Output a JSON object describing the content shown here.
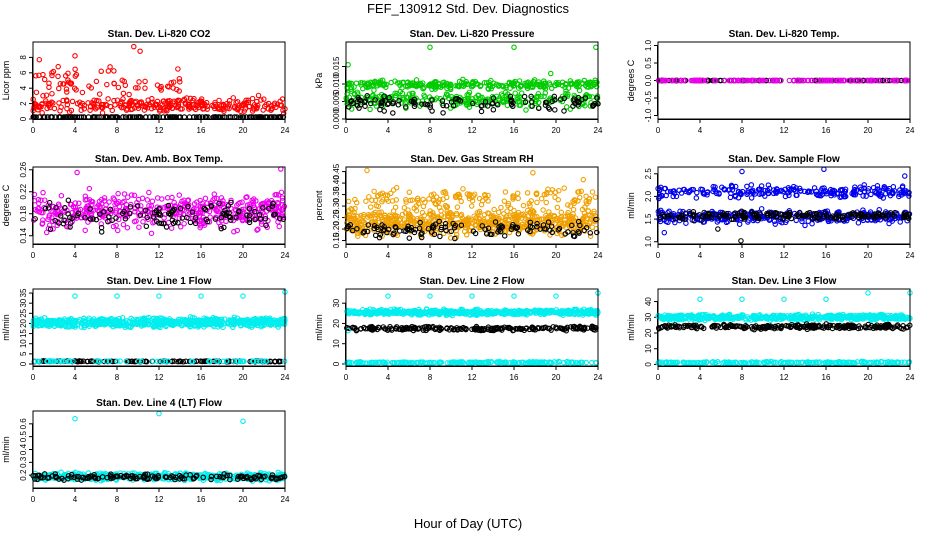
{
  "figure": {
    "title": "FEF_130912  Std. Dev. Diagnostics",
    "xlabel": "Hour of Day (UTC)"
  },
  "chart_data": [
    {
      "type": "scatter",
      "title": "Stan. Dev. Li-820 CO2",
      "ylabel": "Licor ppm",
      "xlim": [
        0,
        24
      ],
      "ylim": [
        0,
        10
      ],
      "xticks": [
        "0",
        "4",
        "8",
        "12",
        "16",
        "20",
        "24"
      ],
      "yticks": [
        "0",
        "2",
        "4",
        "6",
        "8"
      ],
      "series": [
        {
          "color": "#ff0000",
          "seed": 11,
          "n": 340,
          "bands": [
            {
              "w": 1.0,
              "center": 1.8,
              "spread": 1.4,
              "xmax": 24
            },
            {
              "w": 0.18,
              "center": 4.5,
              "spread": 2.5,
              "xmax": 14
            }
          ],
          "outliers": [
            [
              0.6,
              7.7
            ],
            [
              1.8,
              6.0
            ],
            [
              4.0,
              8.2
            ],
            [
              6.5,
              6.2
            ],
            [
              9.6,
              9.4
            ],
            [
              10.2,
              8.8
            ],
            [
              13.8,
              6.5
            ],
            [
              2.4,
              6.8
            ]
          ]
        },
        {
          "color": "#000000",
          "seed": 12,
          "n": 170,
          "bands": [
            {
              "w": 1.0,
              "center": 0.15,
              "spread": 0.12,
              "xmax": 24
            }
          ],
          "outliers": []
        }
      ]
    },
    {
      "type": "scatter",
      "title": "Stan. Dev. Li-820 Pressure",
      "ylabel": "kPa",
      "xlim": [
        0,
        24
      ],
      "ylim": [
        0,
        0.022
      ],
      "xticks": [
        "0",
        "4",
        "8",
        "12",
        "16",
        "20",
        "24"
      ],
      "yticks": [
        "0.000",
        "0.005",
        "0.010",
        "0.015"
      ],
      "ytick_values": [
        0,
        0.005,
        0.01,
        0.015
      ],
      "series": [
        {
          "color": "#00cc00",
          "seed": 21,
          "n": 520,
          "bands": [
            {
              "w": 0.5,
              "center": 0.0055,
              "spread": 0.0035,
              "xmax": 24
            },
            {
              "w": 0.5,
              "center": 0.0098,
              "spread": 0.0018,
              "xmax": 24
            }
          ],
          "outliers": [
            [
              8.0,
              0.0205
            ],
            [
              16.0,
              0.0205
            ],
            [
              23.8,
              0.0205
            ],
            [
              0.2,
              0.0155
            ],
            [
              19.5,
              0.013
            ]
          ]
        },
        {
          "color": "#000000",
          "seed": 22,
          "n": 110,
          "bands": [
            {
              "w": 1.0,
              "center": 0.0045,
              "spread": 0.0035,
              "xmax": 24
            }
          ],
          "outliers": []
        }
      ]
    },
    {
      "type": "scatter",
      "title": "Stan. Dev. Li-820 Temp.",
      "ylabel": "degrees C",
      "xlim": [
        0,
        24
      ],
      "ylim": [
        -1.1,
        1.1
      ],
      "xticks": [
        "0",
        "4",
        "8",
        "12",
        "16",
        "20",
        "24"
      ],
      "yticks": [
        "-1.0",
        "-0.5",
        "0.0",
        "0.5",
        "1.0"
      ],
      "ytick_values": [
        -1,
        -0.5,
        0,
        0.5,
        1
      ],
      "series": [
        {
          "color": "#000000",
          "seed": 31,
          "n": 120,
          "bands": [
            {
              "w": 1.0,
              "center": 0.0,
              "spread": 0.0,
              "xmax": 24
            }
          ],
          "outliers": []
        },
        {
          "color": "#ee00ee",
          "seed": 32,
          "n": 140,
          "bands": [
            {
              "w": 1.0,
              "center": 0.0,
              "spread": 0.0,
              "xmax": 24
            }
          ],
          "outliers": []
        }
      ]
    },
    {
      "type": "scatter",
      "title": "Stan. Dev. Amb. Box Temp.",
      "ylabel": "degrees C",
      "xlim": [
        0,
        24
      ],
      "ylim": [
        0.125,
        0.265
      ],
      "xticks": [
        "0",
        "4",
        "8",
        "12",
        "16",
        "20",
        "24"
      ],
      "yticks": [
        "0.14",
        "0.18",
        "0.22",
        "0.26"
      ],
      "ytick_values": [
        0.14,
        0.18,
        0.22,
        0.26
      ],
      "series": [
        {
          "color": "#ee00ee",
          "seed": 41,
          "n": 460,
          "bands": [
            {
              "w": 1.0,
              "center": 0.185,
              "spread": 0.045,
              "xmax": 24
            }
          ],
          "outliers": [
            [
              23.6,
              0.262
            ],
            [
              4.2,
              0.255
            ]
          ]
        },
        {
          "color": "#000000",
          "seed": 42,
          "n": 120,
          "bands": [
            {
              "w": 1.0,
              "center": 0.175,
              "spread": 0.035,
              "xmax": 24
            }
          ],
          "outliers": []
        }
      ]
    },
    {
      "type": "scatter",
      "title": "Stan. Dev. Gas Stream RH",
      "ylabel": "percent",
      "xlim": [
        0,
        24
      ],
      "ylim": [
        0.135,
        0.47
      ],
      "xticks": [
        "0",
        "4",
        "8",
        "12",
        "16",
        "20",
        "24"
      ],
      "yticks": [
        "0.15",
        "0.20",
        "0.25",
        "0.30",
        "0.35",
        "0.40",
        "0.45"
      ],
      "ytick_values": [
        0.15,
        0.2,
        0.25,
        0.3,
        0.35,
        0.4,
        0.45
      ],
      "series": [
        {
          "color": "#f0a000",
          "seed": 51,
          "n": 700,
          "bands": [
            {
              "w": 1.0,
              "center": 0.23,
              "spread": 0.08,
              "xmax": 24
            },
            {
              "w": 0.25,
              "center": 0.33,
              "spread": 0.06,
              "xmax": 24
            }
          ],
          "outliers": [
            [
              2.0,
              0.455
            ],
            [
              17.8,
              0.445
            ],
            [
              22.6,
              0.415
            ]
          ]
        },
        {
          "color": "#000000",
          "seed": 52,
          "n": 120,
          "bands": [
            {
              "w": 1.0,
              "center": 0.2,
              "spread": 0.05,
              "xmax": 24
            }
          ],
          "outliers": []
        }
      ]
    },
    {
      "type": "scatter",
      "title": "Stan. Dev. Sample Flow",
      "ylabel": "ml/min",
      "xlim": [
        0,
        24
      ],
      "ylim": [
        0.95,
        2.65
      ],
      "xticks": [
        "0",
        "4",
        "8",
        "12",
        "16",
        "20",
        "24"
      ],
      "yticks": [
        "1.0",
        "1.5",
        "2.0",
        "2.5"
      ],
      "ytick_values": [
        1,
        1.5,
        2,
        2.5
      ],
      "series": [
        {
          "color": "#0000ee",
          "seed": 61,
          "n": 560,
          "bands": [
            {
              "w": 0.55,
              "center": 1.55,
              "spread": 0.2,
              "xmax": 24
            },
            {
              "w": 0.45,
              "center": 2.1,
              "spread": 0.2,
              "xmax": 24
            }
          ],
          "outliers": [
            [
              8.0,
              2.55
            ],
            [
              15.8,
              2.6
            ],
            [
              0.6,
              1.2
            ],
            [
              23.5,
              2.45
            ]
          ]
        },
        {
          "color": "#000000",
          "seed": 62,
          "n": 170,
          "bands": [
            {
              "w": 1.0,
              "center": 1.58,
              "spread": 0.12,
              "xmax": 24
            }
          ],
          "outliers": [
            [
              7.9,
              1.02
            ],
            [
              5.7,
              1.28
            ]
          ]
        }
      ]
    },
    {
      "type": "scatter",
      "title": "Stan. Dev. Line 1 Flow",
      "ylabel": "ml/min",
      "xlim": [
        0,
        24
      ],
      "ylim": [
        -1,
        37
      ],
      "xticks": [
        "0",
        "4",
        "8",
        "12",
        "16",
        "20",
        "24"
      ],
      "yticks": [
        "0",
        "5",
        "10",
        "15",
        "20",
        "25",
        "30",
        "35"
      ],
      "ytick_values": [
        0,
        5,
        10,
        15,
        20,
        25,
        30,
        35
      ],
      "series": [
        {
          "color": "#00eeee",
          "seed": 71,
          "n": 700,
          "bands": [
            {
              "w": 1.0,
              "center": 20.5,
              "spread": 3.2,
              "xmax": 24
            }
          ],
          "outliers": [
            [
              4.0,
              33.5
            ],
            [
              8.0,
              33.5
            ],
            [
              12.0,
              33.5
            ],
            [
              16.0,
              33.5
            ],
            [
              20.0,
              33.5
            ],
            [
              24.0,
              35.5
            ]
          ]
        },
        {
          "color": "#000000",
          "seed": 72,
          "n": 140,
          "bands": [
            {
              "w": 1.0,
              "center": 1.3,
              "spread": 0.3,
              "xmax": 24
            }
          ],
          "outliers": []
        },
        {
          "color": "#00eeee",
          "seed": 73,
          "n": 60,
          "bands": [
            {
              "w": 1.0,
              "center": 1.3,
              "spread": 0.2,
              "xmax": 24
            }
          ],
          "outliers": []
        }
      ]
    },
    {
      "type": "scatter",
      "title": "Stan. Dev. Line 2 Flow",
      "ylabel": "ml/min",
      "xlim": [
        0,
        24
      ],
      "ylim": [
        -1,
        37
      ],
      "xticks": [
        "0",
        "4",
        "8",
        "12",
        "16",
        "20",
        "24"
      ],
      "yticks": [
        "0",
        "10",
        "20",
        "30"
      ],
      "ytick_values": [
        0,
        10,
        20,
        30
      ],
      "series": [
        {
          "color": "#00eeee",
          "seed": 81,
          "n": 520,
          "bands": [
            {
              "w": 1.0,
              "center": 25.5,
              "spread": 2.0,
              "xmax": 24
            }
          ],
          "outliers": [
            [
              4.0,
              33.5
            ],
            [
              8.0,
              33.5
            ],
            [
              12.0,
              33.5
            ],
            [
              16.0,
              33.5
            ],
            [
              20.0,
              33.5
            ],
            [
              24.0,
              35.0
            ]
          ]
        },
        {
          "color": "#000000",
          "seed": 82,
          "n": 220,
          "bands": [
            {
              "w": 1.0,
              "center": 17.5,
              "spread": 1.4,
              "xmax": 24
            }
          ],
          "outliers": []
        },
        {
          "color": "#00eeee",
          "seed": 83,
          "n": 200,
          "bands": [
            {
              "w": 1.0,
              "center": 0.7,
              "spread": 0.6,
              "xmax": 24
            }
          ],
          "outliers": [
            [
              0.2,
              16.5
            ]
          ]
        }
      ]
    },
    {
      "type": "scatter",
      "title": "Stan. Dev. Line 3 Flow",
      "ylabel": "ml/min",
      "xlim": [
        0,
        24
      ],
      "ylim": [
        -1,
        48
      ],
      "xticks": [
        "0",
        "4",
        "8",
        "12",
        "16",
        "20",
        "24"
      ],
      "yticks": [
        "0",
        "10",
        "20",
        "30",
        "40"
      ],
      "ytick_values": [
        0,
        10,
        20,
        30,
        40
      ],
      "series": [
        {
          "color": "#00eeee",
          "seed": 91,
          "n": 520,
          "bands": [
            {
              "w": 1.0,
              "center": 30.0,
              "spread": 2.4,
              "xmax": 24
            }
          ],
          "outliers": [
            [
              4.0,
              41.5
            ],
            [
              8.0,
              41.5
            ],
            [
              12.0,
              41.5
            ],
            [
              16.0,
              41.5
            ],
            [
              20.0,
              45.5
            ],
            [
              24.0,
              45.5
            ]
          ]
        },
        {
          "color": "#000000",
          "seed": 92,
          "n": 240,
          "bands": [
            {
              "w": 1.0,
              "center": 24.0,
              "spread": 2.2,
              "xmax": 24
            }
          ],
          "outliers": []
        },
        {
          "color": "#00eeee",
          "seed": 93,
          "n": 200,
          "bands": [
            {
              "w": 1.0,
              "center": 1.2,
              "spread": 0.8,
              "xmax": 24
            }
          ],
          "outliers": []
        }
      ]
    },
    {
      "type": "scatter",
      "title": "Stan. Dev. Line 4 (LT) Flow",
      "ylabel": "ml/min",
      "xlim": [
        0,
        24
      ],
      "ylim": [
        0.1,
        0.7
      ],
      "xticks": [
        "0",
        "4",
        "8",
        "12",
        "16",
        "20",
        "24"
      ],
      "yticks": [
        "0.2",
        "0.3",
        "0.4",
        "0.5",
        "0.6"
      ],
      "ytick_values": [
        0.2,
        0.3,
        0.4,
        0.5,
        0.6
      ],
      "series": [
        {
          "color": "#00eeee",
          "seed": 101,
          "n": 520,
          "bands": [
            {
              "w": 1.0,
              "center": 0.19,
              "spread": 0.04,
              "xmax": 24
            }
          ],
          "outliers": [
            [
              4.0,
              0.64
            ],
            [
              12.0,
              0.68
            ],
            [
              20.0,
              0.62
            ]
          ]
        },
        {
          "color": "#000000",
          "seed": 102,
          "n": 150,
          "bands": [
            {
              "w": 1.0,
              "center": 0.185,
              "spread": 0.03,
              "xmax": 24
            }
          ],
          "outliers": []
        }
      ]
    }
  ]
}
